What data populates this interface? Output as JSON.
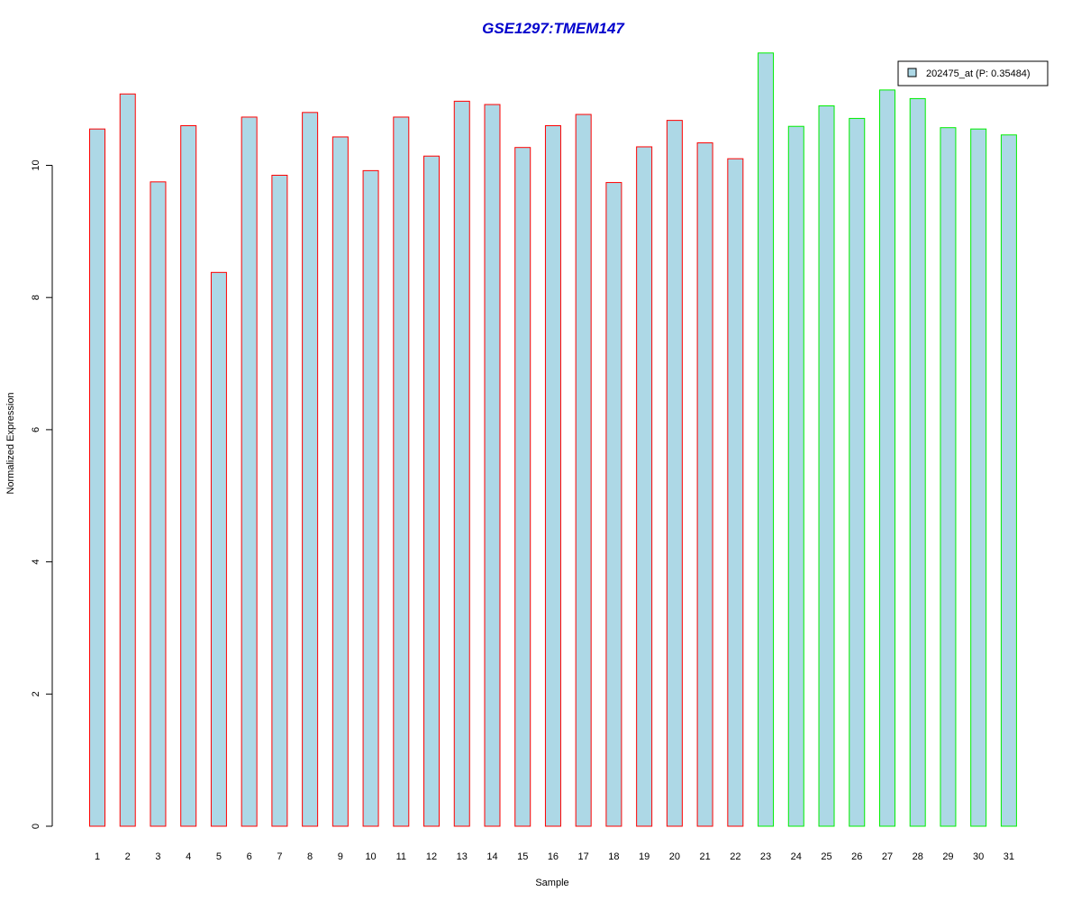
{
  "chart_data": {
    "type": "bar",
    "title": "GSE1297:TMEM147",
    "xlabel": "Sample",
    "ylabel": "Normalized Expression",
    "ylim": [
      0,
      11.8
    ],
    "yticks": [
      0,
      2,
      4,
      6,
      8,
      10
    ],
    "grid": false,
    "legend": {
      "placement": "top-right",
      "entries": [
        "202475_at (P: 0.35484)"
      ]
    },
    "fill_color": "#add8e6",
    "group_colors": {
      "group1": "#ff0000",
      "group2": "#00ee00"
    },
    "categories": [
      "1",
      "2",
      "3",
      "4",
      "5",
      "6",
      "7",
      "8",
      "9",
      "10",
      "11",
      "12",
      "13",
      "14",
      "15",
      "16",
      "17",
      "18",
      "19",
      "20",
      "21",
      "22",
      "23",
      "24",
      "25",
      "26",
      "27",
      "28",
      "29",
      "30",
      "31"
    ],
    "values": [
      10.55,
      11.08,
      9.75,
      10.6,
      8.38,
      10.73,
      9.85,
      10.8,
      10.43,
      9.92,
      10.73,
      10.14,
      10.97,
      10.92,
      10.27,
      10.6,
      10.77,
      9.74,
      10.28,
      10.68,
      10.34,
      10.1,
      11.7,
      10.59,
      10.9,
      10.71,
      11.14,
      11.01,
      10.57,
      10.55,
      10.46
    ],
    "groups": [
      "group1",
      "group1",
      "group1",
      "group1",
      "group1",
      "group1",
      "group1",
      "group1",
      "group1",
      "group1",
      "group1",
      "group1",
      "group1",
      "group1",
      "group1",
      "group1",
      "group1",
      "group1",
      "group1",
      "group1",
      "group1",
      "group1",
      "group2",
      "group2",
      "group2",
      "group2",
      "group2",
      "group2",
      "group2",
      "group2",
      "group2"
    ]
  }
}
